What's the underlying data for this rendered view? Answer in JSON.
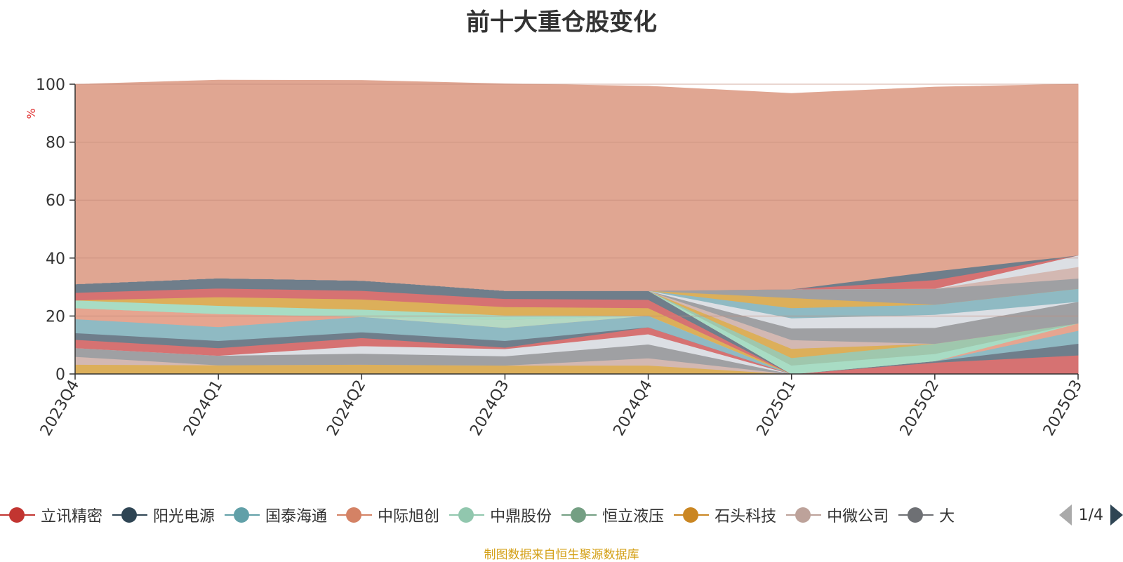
{
  "chart_data": {
    "type": "area",
    "title": "前十大重仓股变化",
    "ylabel": "%",
    "ylim": [
      0,
      100
    ],
    "yticks": [
      0,
      20,
      40,
      60,
      80,
      100
    ],
    "categories": [
      "2023Q4",
      "2024Q1",
      "2024Q2",
      "2024Q3",
      "2024Q4",
      "2025Q1",
      "2025Q2",
      "2025Q3"
    ],
    "grid": true,
    "legend_position": "bottom",
    "series": [
      {
        "name": "石头科技",
        "color": "#dcaf5a",
        "values": [
          3.3,
          3.1,
          3.3,
          3.0,
          3.0,
          0,
          0,
          0
        ]
      },
      {
        "name": "中微公司",
        "color": "#d3b8b2",
        "values": [
          2.7,
          0,
          0,
          0,
          2.5,
          0,
          0,
          0
        ]
      },
      {
        "name": "",
        "color": "#9fa0a3",
        "values": [
          3.0,
          3.3,
          3.8,
          3.2,
          4.8,
          0,
          0,
          0
        ]
      },
      {
        "name": "",
        "color": "#dcdfe4",
        "values": [
          0,
          0,
          2.6,
          2.5,
          3.5,
          0,
          0,
          0
        ]
      },
      {
        "name": "立讯精密",
        "color": "#d67272",
        "values": [
          2.9,
          2.6,
          2.8,
          0.5,
          2.4,
          0,
          0,
          0
        ]
      },
      {
        "name": "阳光电源",
        "color": "#6f7e8b",
        "values": [
          2.3,
          2.5,
          2.0,
          2.3,
          0,
          0,
          0,
          0
        ]
      },
      {
        "name": "国泰海通",
        "color": "#8fbac3",
        "values": [
          4.8,
          4.8,
          5.3,
          4.5,
          4.0,
          0,
          0,
          0
        ]
      },
      {
        "name": "中际旭创",
        "color": "#e6a590",
        "values": [
          3.8,
          4.5,
          0,
          0,
          0,
          0,
          0,
          0
        ]
      },
      {
        "name": "中鼎股份",
        "color": "#b5d9c3",
        "values": [
          0,
          0,
          0,
          2.8,
          0,
          0,
          0,
          0
        ]
      },
      {
        "name": "恒立液压",
        "color": "#9fc7ad",
        "values": [
          0,
          0,
          0,
          0,
          0,
          0,
          0,
          0
        ]
      },
      {
        "name": "",
        "color": "#a8dcc4",
        "values": [
          2.7,
          2.8,
          2.5,
          1.5,
          0,
          0,
          0,
          0
        ]
      },
      {
        "name": "",
        "color": "#dcaf5a",
        "values": [
          0,
          3.0,
          3.5,
          2.9,
          2.6,
          0,
          0,
          0
        ]
      },
      {
        "name": "",
        "color": "#d67272",
        "values": [
          2.6,
          3.0,
          3.0,
          2.8,
          2.9,
          0,
          0,
          0
        ]
      },
      {
        "name": "",
        "color": "#6f7e8b",
        "values": [
          3.0,
          3.5,
          3.5,
          2.8,
          3.1,
          0,
          0,
          0
        ]
      },
      {
        "name": "",
        "color": "#d67272",
        "values": [
          0,
          0,
          0,
          0,
          0,
          0,
          4.0,
          6.5
        ]
      },
      {
        "name": "",
        "color": "#6f7e8b",
        "values": [
          0,
          0,
          0,
          0,
          0,
          0,
          0.5,
          4.0
        ]
      },
      {
        "name": "",
        "color": "#8fbac3",
        "values": [
          0,
          0,
          0,
          0,
          0,
          0,
          0,
          4.5
        ]
      },
      {
        "name": "",
        "color": "#e6a590",
        "values": [
          0,
          0,
          0,
          0,
          0,
          0,
          0,
          2.5
        ]
      },
      {
        "name": "",
        "color": "#a8dcc4",
        "values": [
          0,
          0,
          0,
          0,
          0,
          3.0,
          2.5,
          0
        ]
      },
      {
        "name": "",
        "color": "#9fc7ad",
        "values": [
          0,
          0,
          0,
          0,
          0,
          2.6,
          3.5,
          0
        ]
      },
      {
        "name": "",
        "color": "#dcaf5a",
        "values": [
          0,
          0,
          0,
          0,
          0,
          3.2,
          0,
          0
        ]
      },
      {
        "name": "",
        "color": "#d3b8b2",
        "values": [
          0,
          0,
          0,
          0,
          0,
          3.0,
          0,
          0
        ]
      },
      {
        "name": "",
        "color": "#9fa0a3",
        "values": [
          0,
          0,
          0,
          0,
          0,
          4.0,
          5.5,
          7.5
        ]
      },
      {
        "name": "",
        "color": "#dcdfe4",
        "values": [
          0,
          0,
          0,
          0,
          0,
          3.5,
          4.5,
          0
        ]
      },
      {
        "name": "",
        "color": "#8fbac3",
        "values": [
          0,
          0,
          0,
          0,
          0,
          3.5,
          3.5,
          4.5
        ]
      },
      {
        "name": "",
        "color": "#dcaf5a",
        "values": [
          0,
          0,
          0,
          0,
          0,
          3.5,
          0,
          0
        ]
      },
      {
        "name": "",
        "color": "#9fa0a3",
        "values": [
          0,
          0,
          0,
          0,
          0,
          3.0,
          5.5,
          3.5
        ]
      },
      {
        "name": "",
        "color": "#d3b8b2",
        "values": [
          0,
          0,
          0,
          0,
          0,
          0,
          0,
          4.0
        ]
      },
      {
        "name": "",
        "color": "#dcdfe4",
        "values": [
          0,
          0,
          0,
          0,
          0,
          0,
          0,
          4.0
        ]
      },
      {
        "name": "",
        "color": "#d67272",
        "values": [
          0,
          0,
          0,
          0,
          0,
          0,
          3.0,
          0
        ]
      },
      {
        "name": "",
        "color": "#6f7e8b",
        "values": [
          0,
          0,
          0,
          0,
          0,
          0,
          3.0,
          0
        ]
      },
      {
        "name": "",
        "color": "#e0a692",
        "values": [
          68.8,
          68.3,
          69.0,
          71.3,
          70.5,
          67.5,
          63.5,
          59.0
        ]
      }
    ]
  },
  "legend": {
    "items": [
      {
        "label": "立讯精密",
        "color": "#c23531"
      },
      {
        "label": "阳光电源",
        "color": "#2f4554"
      },
      {
        "label": "国泰海通",
        "color": "#61a0a8"
      },
      {
        "label": "中际旭创",
        "color": "#d48265"
      },
      {
        "label": "中鼎股份",
        "color": "#91c7ae"
      },
      {
        "label": "恒立液压",
        "color": "#749f83"
      },
      {
        "label": "石头科技",
        "color": "#ca8622"
      },
      {
        "label": "中微公司",
        "color": "#bda29a"
      },
      {
        "label": "大",
        "color": "#6e7074"
      }
    ],
    "pager": "1/4"
  },
  "footer_note": "制图数据来自恒生聚源数据库"
}
